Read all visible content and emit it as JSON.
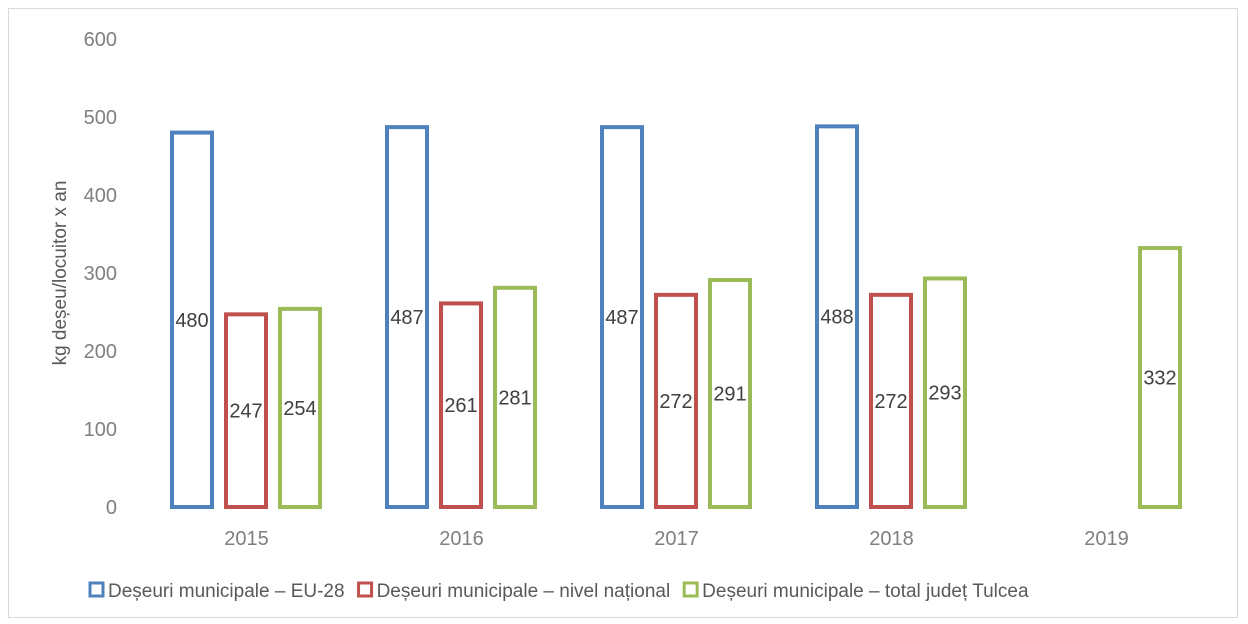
{
  "chart_data": {
    "type": "bar",
    "title": "",
    "xlabel": "",
    "ylabel": "kg deșeu/locuitor x an",
    "ylim": [
      0,
      600
    ],
    "yticks": [
      0,
      100,
      200,
      300,
      400,
      500,
      600
    ],
    "grid": false,
    "legend_position": "bottom",
    "categories": [
      "2015",
      "2016",
      "2017",
      "2018",
      "2019"
    ],
    "series": [
      {
        "name": "Deșeuri municipale – EU-28",
        "color": "#4f81bd",
        "values": [
          480,
          487,
          487,
          488,
          null
        ]
      },
      {
        "name": "Deșeuri municipale – nivel național",
        "color": "#c0504d",
        "values": [
          247,
          261,
          272,
          272,
          null
        ]
      },
      {
        "name": "Deșeuri municipale – total județ Tulcea",
        "color": "#9bbb59",
        "values": [
          254,
          281,
          291,
          293,
          332
        ]
      }
    ]
  }
}
